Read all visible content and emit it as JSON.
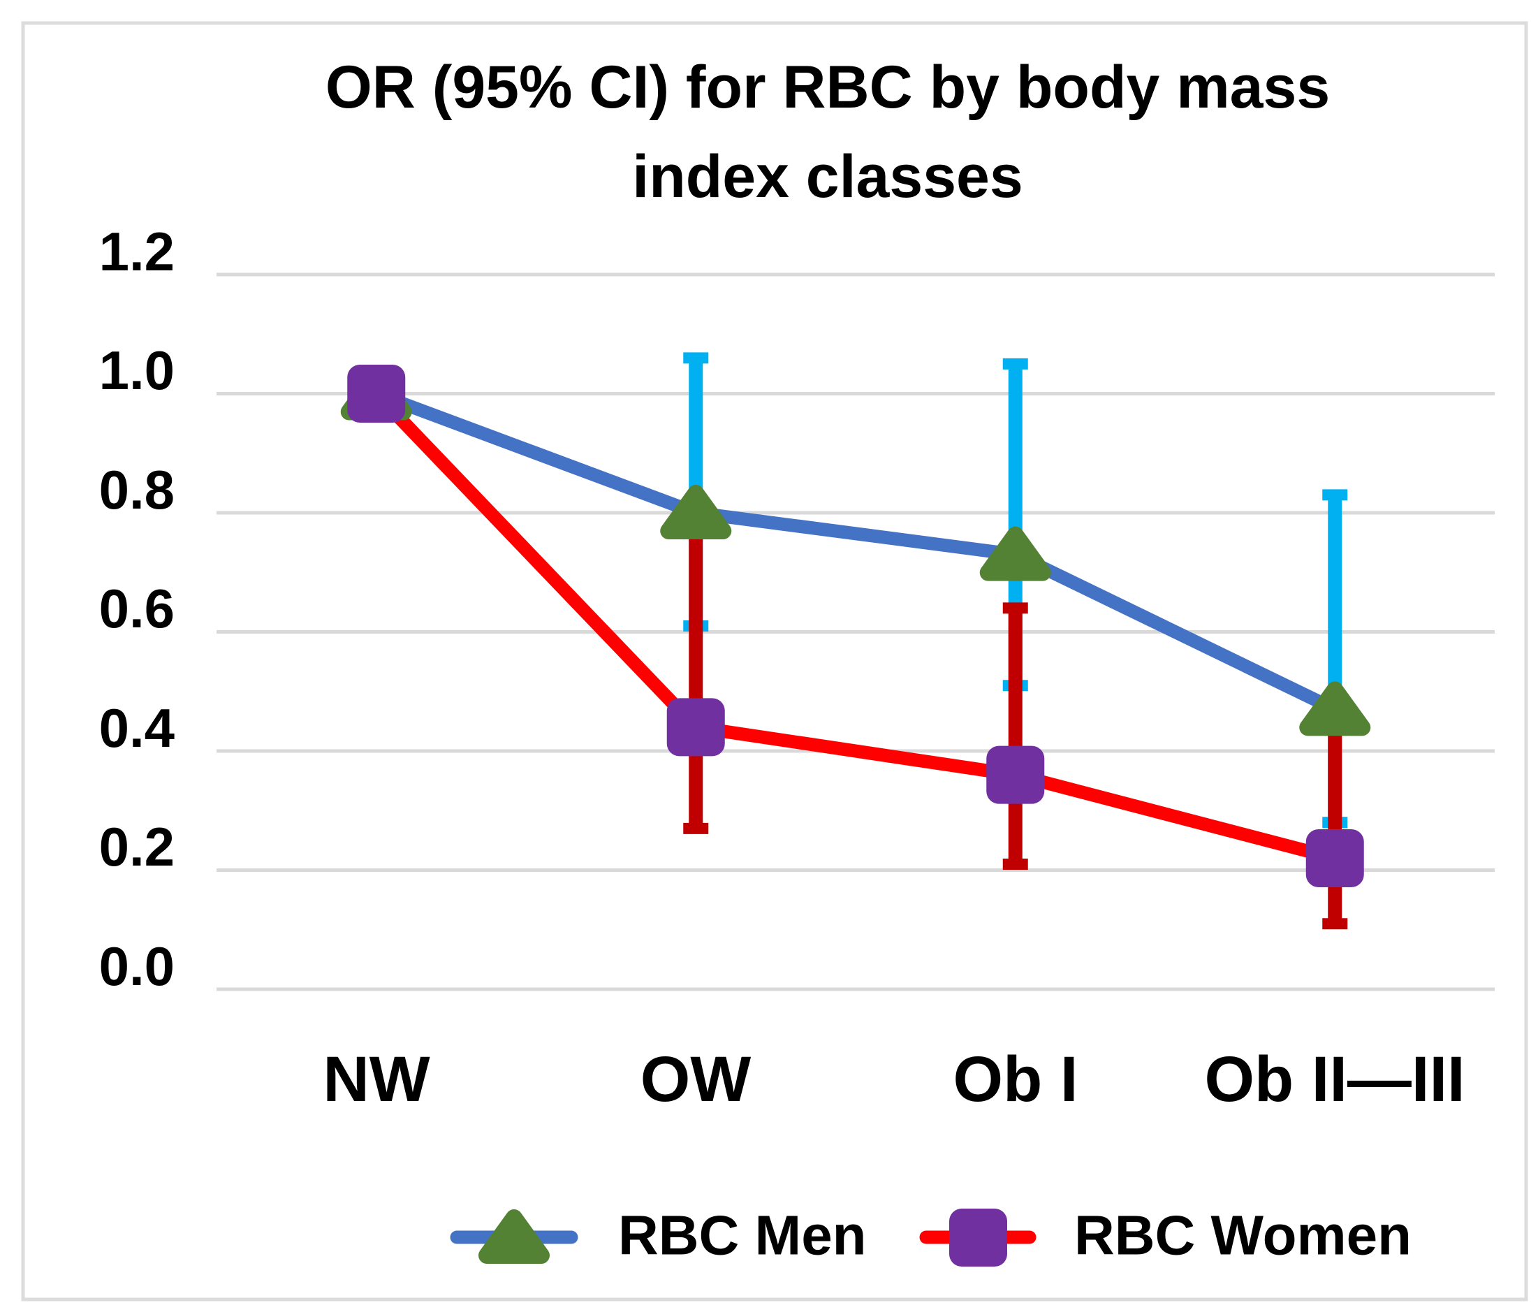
{
  "title": {
    "line1": "OR (95% CI) for RBC by body mass",
    "line2": "index classes"
  },
  "chart_data": {
    "type": "line",
    "title": "OR (95% CI) for RBC by body mass index classes",
    "categories": [
      "NW",
      "OW",
      "Ob I",
      "Ob II—III"
    ],
    "y_ticks": [
      "1.2",
      "1.0",
      "0.8",
      "0.6",
      "0.4",
      "0.2",
      "0.0"
    ],
    "ylim": [
      0.0,
      1.2
    ],
    "grid": true,
    "legend_position": "bottom",
    "error_bars": "95% CI",
    "series": [
      {
        "name": "RBC Men",
        "marker": "triangle",
        "line_color": "#4472C4",
        "marker_color": "#548235",
        "error_color": "#00B0F0",
        "values": [
          1.0,
          0.8,
          0.73,
          0.47
        ],
        "ci_low": [
          null,
          0.61,
          0.51,
          0.28
        ],
        "ci_high": [
          null,
          1.06,
          1.05,
          0.83
        ]
      },
      {
        "name": "RBC Women",
        "marker": "square",
        "line_color": "#FF0000",
        "marker_color": "#7030A0",
        "error_color": "#C00000",
        "values": [
          1.0,
          0.44,
          0.36,
          0.22
        ],
        "ci_low": [
          null,
          0.27,
          0.21,
          0.11
        ],
        "ci_high": [
          null,
          0.78,
          0.64,
          0.45
        ]
      }
    ],
    "colors": {
      "gridline": "#D9D9D9",
      "frame": "#DCDCDC",
      "background": "#FFFFFF",
      "text": "#000000"
    }
  }
}
